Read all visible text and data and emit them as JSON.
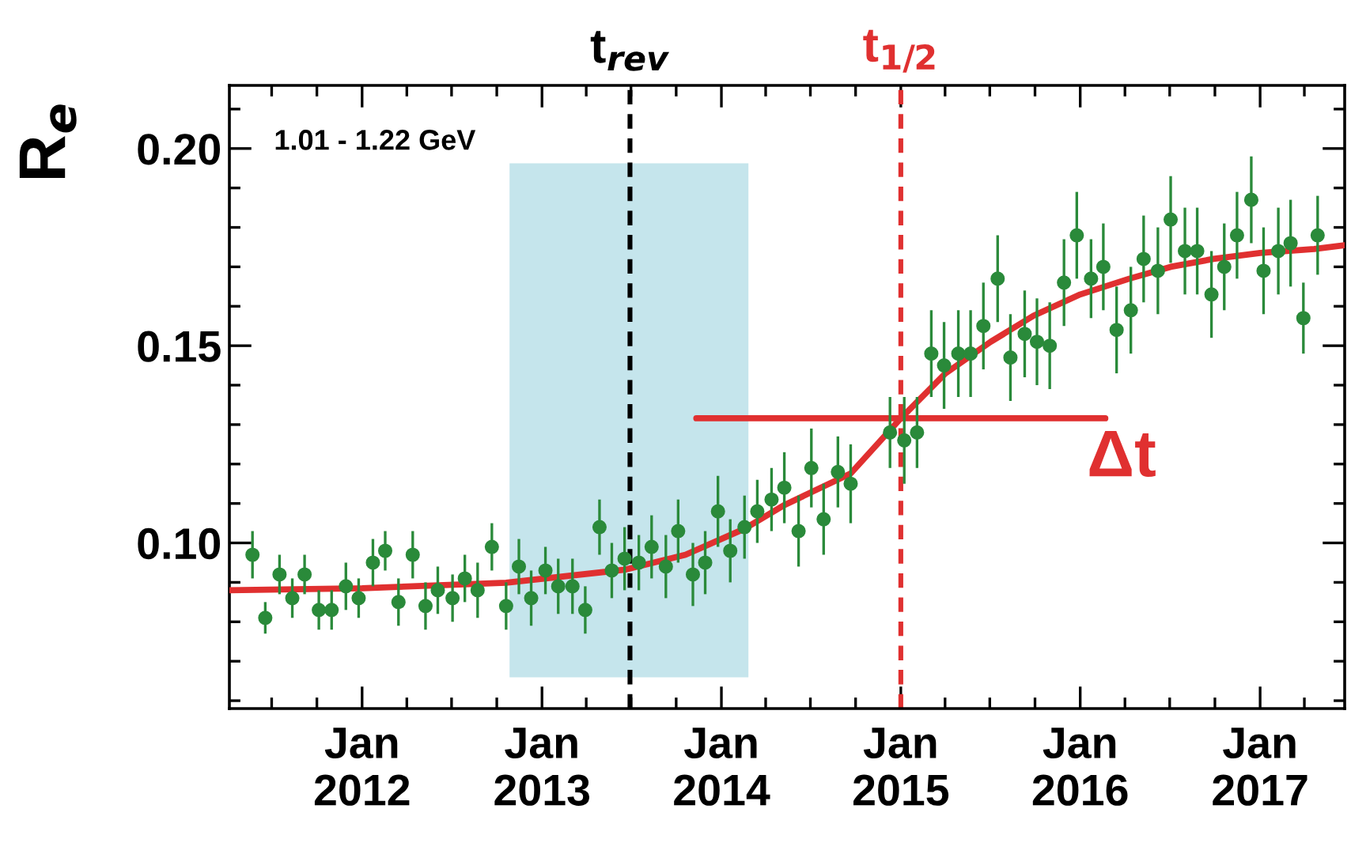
{
  "chart_data": {
    "type": "scatter",
    "ylabel": "R$_{e}$",
    "annotations": [
      "1.01 - 1.22 GeV",
      "Δt"
    ],
    "xlim": [
      "2011-04-06",
      "2017-06-22"
    ],
    "ylim": [
      0.058,
      0.216
    ],
    "xticks": [
      {
        "value": "2012-01-01",
        "label": "Jan\n2012"
      },
      {
        "value": "2013-01-01",
        "label": "Jan\n2013"
      },
      {
        "value": "2014-01-01",
        "label": "Jan\n2014"
      },
      {
        "value": "2015-01-01",
        "label": "Jan\n2015"
      },
      {
        "value": "2016-01-01",
        "label": "Jan\n2016"
      },
      {
        "value": "2017-01-01",
        "label": "Jan\n2017"
      }
    ],
    "yticks": [
      {
        "value": 0.1,
        "label": "0.10"
      },
      0.15,
      {
        "value": 0.2,
        "label": "0.20"
      }
    ],
    "grid": false,
    "legend": false,
    "ref_lines": [
      {
        "axis": "x",
        "value": "2013-06-29",
        "label": "t$_{rev}$",
        "color": "#000000",
        "line_style": "dashed"
      },
      {
        "axis": "x",
        "value": "2015-01-01",
        "label": "t$_{1/2}$",
        "color": "#e03030",
        "line_style": "dashed"
      }
    ],
    "bands": [
      {
        "axis": "x",
        "from": "2012-10-27",
        "to": "2014-02-25",
        "color": "#c5e5ec"
      }
    ],
    "series": [
      {
        "color": "#2a8a3a",
        "marker": "circle",
        "x": [
          "2011-05-23",
          "2011-06-18",
          "2011-07-17",
          "2011-08-12",
          "2011-09-06",
          "2011-10-05",
          "2011-10-31",
          "2011-11-29",
          "2011-12-25",
          "2012-01-23",
          "2012-02-17",
          "2012-03-15",
          "2012-04-13",
          "2012-05-09",
          "2012-06-03",
          "2012-07-03",
          "2012-07-28",
          "2012-08-23",
          "2012-09-21",
          "2012-10-20",
          "2012-11-15",
          "2012-12-10",
          "2013-01-08",
          "2013-02-03",
          "2013-03-04",
          "2013-03-30",
          "2013-04-28",
          "2013-05-23",
          "2013-06-18",
          "2013-07-17",
          "2013-08-12",
          "2013-09-10",
          "2013-10-05",
          "2013-11-04",
          "2013-11-29",
          "2013-12-25",
          "2014-01-19",
          "2014-02-17",
          "2014-03-15",
          "2014-04-13",
          "2014-05-09",
          "2014-06-07",
          "2014-07-03",
          "2014-07-28",
          "2014-08-26",
          "2014-09-21",
          "2014-12-10",
          "2015-01-08",
          "2015-02-03",
          "2015-03-04",
          "2015-03-30",
          "2015-04-28",
          "2015-05-23",
          "2015-06-18",
          "2015-07-17",
          "2015-08-12",
          "2015-09-10",
          "2015-10-05",
          "2015-10-31",
          "2015-11-29",
          "2015-12-25",
          "2016-01-23",
          "2016-02-17",
          "2016-03-15",
          "2016-04-13",
          "2016-05-09",
          "2016-06-07",
          "2016-07-03",
          "2016-08-01",
          "2016-08-26",
          "2016-09-24",
          "2016-10-20",
          "2016-11-15",
          "2016-12-14",
          "2017-01-08",
          "2017-02-07",
          "2017-03-04",
          "2017-03-30",
          "2017-04-28"
        ],
        "values": [
          0.097,
          0.081,
          0.092,
          0.086,
          0.092,
          0.083,
          0.083,
          0.089,
          0.086,
          0.095,
          0.098,
          0.085,
          0.097,
          0.084,
          0.088,
          0.086,
          0.091,
          0.088,
          0.099,
          0.084,
          0.094,
          0.086,
          0.093,
          0.089,
          0.089,
          0.083,
          0.104,
          0.093,
          0.096,
          0.095,
          0.099,
          0.094,
          0.103,
          0.092,
          0.095,
          0.108,
          0.098,
          0.104,
          0.108,
          0.111,
          0.114,
          0.103,
          0.119,
          0.106,
          0.118,
          0.115,
          0.128,
          0.126,
          0.128,
          0.148,
          0.145,
          0.148,
          0.148,
          0.155,
          0.167,
          0.147,
          0.153,
          0.151,
          0.15,
          0.166,
          0.178,
          0.167,
          0.17,
          0.154,
          0.159,
          0.172,
          0.169,
          0.182,
          0.174,
          0.174,
          0.163,
          0.17,
          0.178,
          0.187,
          0.169,
          0.174,
          0.176,
          0.157,
          0.178
        ],
        "errors": [
          0.006,
          0.004,
          0.005,
          0.005,
          0.005,
          0.005,
          0.005,
          0.006,
          0.005,
          0.006,
          0.005,
          0.006,
          0.006,
          0.006,
          0.006,
          0.006,
          0.006,
          0.007,
          0.006,
          0.006,
          0.007,
          0.007,
          0.006,
          0.007,
          0.007,
          0.006,
          0.007,
          0.007,
          0.008,
          0.007,
          0.008,
          0.008,
          0.008,
          0.008,
          0.008,
          0.009,
          0.008,
          0.008,
          0.008,
          0.008,
          0.009,
          0.009,
          0.01,
          0.009,
          0.009,
          0.01,
          0.009,
          0.011,
          0.009,
          0.011,
          0.011,
          0.011,
          0.011,
          0.011,
          0.011,
          0.011,
          0.011,
          0.011,
          0.011,
          0.011,
          0.011,
          0.01,
          0.011,
          0.011,
          0.011,
          0.011,
          0.011,
          0.011,
          0.011,
          0.011,
          0.011,
          0.011,
          0.011,
          0.011,
          0.011,
          0.011,
          0.011,
          0.009,
          0.01
        ]
      },
      {
        "type": "line",
        "color": "#e03030",
        "line_style": "solid",
        "x": [
          "2011-04-06",
          "2012-01-01",
          "2012-10-20",
          "2013-06-18",
          "2013-10-20",
          "2014-02-17",
          "2014-05-09",
          "2014-09-21",
          "2015-01-01",
          "2015-04-02",
          "2015-07-03",
          "2015-09-28",
          "2016-01-01",
          "2016-04-10",
          "2016-07-03",
          "2016-09-28",
          "2017-01-01",
          "2017-04-21",
          "2017-06-22"
        ],
        "values": [
          0.088,
          0.0885,
          0.0899,
          0.0932,
          0.097,
          0.1036,
          0.1096,
          0.1176,
          0.1316,
          0.143,
          0.151,
          0.1576,
          0.163,
          0.167,
          0.17,
          0.172,
          0.1735,
          0.1745,
          0.1755
        ]
      },
      {
        "type": "line",
        "color": "#e03030",
        "line_style": "solid",
        "x": [
          "2013-11-11",
          "2016-02-21"
        ],
        "values": [
          0.1316,
          0.1316
        ]
      }
    ]
  }
}
